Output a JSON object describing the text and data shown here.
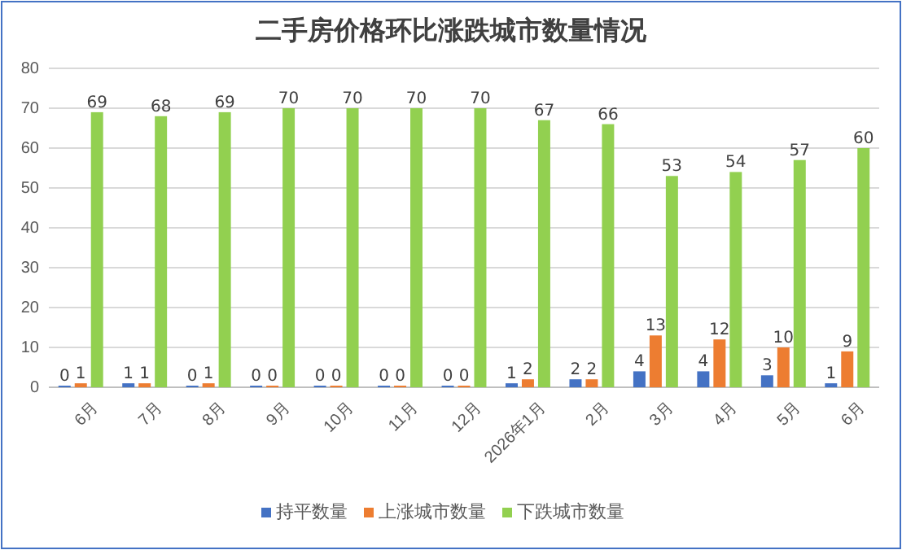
{
  "chart_data": {
    "type": "bar",
    "title": "二手房价格环比涨跌城市数量情况",
    "categories": [
      "6月",
      "7月",
      "8月",
      "9月",
      "10月",
      "11月",
      "12月",
      "2026年1月",
      "2月",
      "3月",
      "4月",
      "5月",
      "6月"
    ],
    "series": [
      {
        "name": "持平数量",
        "color": "#4472c4",
        "values": [
          0,
          1,
          0,
          0,
          0,
          0,
          0,
          1,
          2,
          4,
          4,
          3,
          1
        ]
      },
      {
        "name": "上涨城市数量",
        "color": "#ed7d31",
        "values": [
          1,
          1,
          1,
          0,
          0,
          0,
          0,
          2,
          2,
          13,
          12,
          10,
          9
        ]
      },
      {
        "name": "下跌城市数量",
        "color": "#92d050",
        "values": [
          69,
          68,
          69,
          70,
          70,
          70,
          70,
          67,
          66,
          53,
          54,
          57,
          60
        ]
      }
    ],
    "ylim": [
      0,
      80
    ],
    "yticks": [
      0,
      10,
      20,
      30,
      40,
      50,
      60,
      70,
      80
    ],
    "grid": "y",
    "legend": "bottom",
    "data_labels": true
  }
}
